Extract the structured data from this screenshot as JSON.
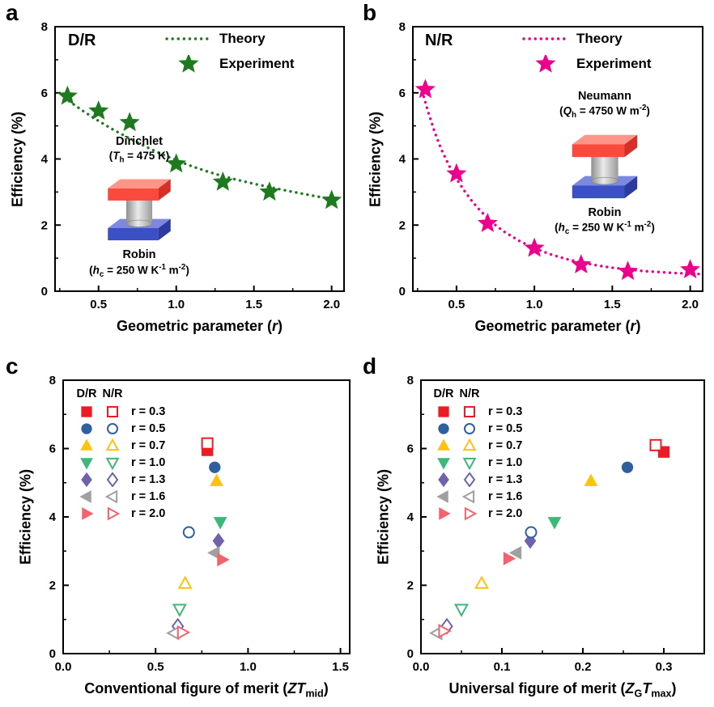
{
  "chart_data": [
    {
      "panel_letter": "a",
      "type": "line",
      "title": "D/R",
      "ylabel": "Efficiency (%)",
      "xlabel_segments": [
        {
          "t": "Geometric parameter ("
        },
        {
          "t": "r",
          "i": true
        },
        {
          "t": ")"
        }
      ],
      "xlim": [
        0.22,
        2.08
      ],
      "ylim": [
        0,
        8
      ],
      "xticks": {
        "values": [
          0.5,
          1.0,
          1.5,
          2.0
        ],
        "labels": [
          "0.5",
          "1.0",
          "1.5",
          "2.0"
        ]
      },
      "yticks": {
        "values": [
          0,
          2,
          4,
          6,
          8
        ],
        "labels": [
          "0",
          "2",
          "4",
          "6",
          "8"
        ]
      },
      "legend": {
        "position": "top-center",
        "entries": [
          {
            "kind": "dotted-line",
            "label": "Theory",
            "color": "#1f7a1f"
          },
          {
            "kind": "star",
            "label": "Experiment",
            "color": "#1f7a1f"
          }
        ]
      },
      "series": [
        {
          "name": "Theory",
          "kind": "dotted-line",
          "color": "#1f7a1f",
          "x": [
            0.28,
            0.4,
            0.5,
            0.6,
            0.7,
            0.8,
            0.9,
            1.0,
            1.1,
            1.2,
            1.3,
            1.4,
            1.5,
            1.6,
            1.7,
            1.8,
            1.9,
            2.0,
            2.06
          ],
          "y": [
            5.85,
            5.45,
            5.15,
            4.87,
            4.62,
            4.38,
            4.16,
            3.96,
            3.78,
            3.62,
            3.48,
            3.36,
            3.25,
            3.15,
            3.05,
            2.96,
            2.87,
            2.79,
            2.74
          ]
        },
        {
          "name": "Experiment",
          "kind": "scatter",
          "marker": "star",
          "filled": true,
          "color": "#1f7a1f",
          "size": 10,
          "x": [
            0.3,
            0.5,
            0.7,
            1.0,
            1.3,
            1.6,
            2.0
          ],
          "y": [
            5.9,
            5.45,
            5.1,
            3.85,
            3.3,
            3.0,
            2.75
          ]
        }
      ],
      "inset": {
        "top_title": "Dirichlet",
        "top_value_segments": [
          {
            "t": "("
          },
          {
            "t": "T",
            "i": true
          },
          {
            "t": "h",
            "sub": true
          },
          {
            "t": " = 475 K)"
          }
        ],
        "bottom_title": "Robin",
        "bottom_value_segments": [
          {
            "t": "("
          },
          {
            "t": "h",
            "i": true
          },
          {
            "t": "c",
            "sub": true
          },
          {
            "t": " = 250 W K"
          },
          {
            "t": "-1",
            "sup": true
          },
          {
            "t": " m"
          },
          {
            "t": "-2",
            "sup": true
          },
          {
            "t": ")"
          }
        ]
      }
    },
    {
      "panel_letter": "b",
      "type": "line",
      "title": "N/R",
      "ylabel": "Efficiency (%)",
      "xlabel_segments": [
        {
          "t": "Geometric parameter ("
        },
        {
          "t": "r",
          "i": true
        },
        {
          "t": ")"
        }
      ],
      "xlim": [
        0.22,
        2.08
      ],
      "ylim": [
        0,
        8
      ],
      "xticks": {
        "values": [
          0.5,
          1.0,
          1.5,
          2.0
        ],
        "labels": [
          "0.5",
          "1.0",
          "1.5",
          "2.0"
        ]
      },
      "yticks": {
        "values": [
          0,
          2,
          4,
          6,
          8
        ],
        "labels": [
          "0",
          "2",
          "4",
          "6",
          "8"
        ]
      },
      "legend": {
        "position": "top-center",
        "entries": [
          {
            "kind": "dotted-line",
            "label": "Theory",
            "color": "#ec008c"
          },
          {
            "kind": "star",
            "label": "Experiment",
            "color": "#ec008c"
          }
        ]
      },
      "series": [
        {
          "name": "Theory",
          "kind": "dotted-line",
          "color": "#ec008c",
          "x": [
            0.28,
            0.32,
            0.36,
            0.4,
            0.45,
            0.5,
            0.55,
            0.6,
            0.65,
            0.7,
            0.75,
            0.8,
            0.9,
            1.0,
            1.1,
            1.2,
            1.3,
            1.4,
            1.5,
            1.6,
            1.7,
            1.8,
            1.9,
            2.0,
            2.06
          ],
          "y": [
            6.05,
            5.4,
            4.82,
            4.32,
            3.82,
            3.4,
            3.04,
            2.72,
            2.45,
            2.21,
            2.0,
            1.82,
            1.53,
            1.3,
            1.12,
            0.98,
            0.87,
            0.78,
            0.71,
            0.66,
            0.61,
            0.58,
            0.55,
            0.53,
            0.52
          ]
        },
        {
          "name": "Experiment",
          "kind": "scatter",
          "marker": "star",
          "filled": true,
          "color": "#ec008c",
          "size": 10,
          "x": [
            0.3,
            0.5,
            0.7,
            1.0,
            1.3,
            1.6,
            2.0
          ],
          "y": [
            6.1,
            3.55,
            2.05,
            1.3,
            0.8,
            0.6,
            0.65
          ]
        }
      ],
      "inset": {
        "top_title": "Neumann",
        "top_value_segments": [
          {
            "t": "("
          },
          {
            "t": "Q",
            "i": true
          },
          {
            "t": "h",
            "sub": true
          },
          {
            "t": " = 4750 W m"
          },
          {
            "t": "-2",
            "sup": true
          },
          {
            "t": ")"
          }
        ],
        "bottom_title": "Robin",
        "bottom_value_segments": [
          {
            "t": "("
          },
          {
            "t": "h",
            "i": true
          },
          {
            "t": "c",
            "sub": true
          },
          {
            "t": " = 250 W K"
          },
          {
            "t": "-1",
            "sup": true
          },
          {
            "t": " m"
          },
          {
            "t": "-2",
            "sup": true
          },
          {
            "t": ")"
          }
        ]
      }
    },
    {
      "panel_letter": "c",
      "type": "scatter",
      "ylabel": "Efficiency (%)",
      "xlabel_segments": [
        {
          "t": "Conventional figure of merit ("
        },
        {
          "t": "ZT",
          "i": true
        },
        {
          "t": "mid",
          "sub": true
        },
        {
          "t": ")"
        }
      ],
      "xlim": [
        0,
        1.55
      ],
      "ylim": [
        0,
        8
      ],
      "xticks": {
        "values": [
          0.0,
          0.5,
          1.0,
          1.5
        ],
        "labels": [
          "0.0",
          "0.5",
          "1.0",
          "1.5"
        ]
      },
      "yticks": {
        "values": [
          0,
          2,
          4,
          6,
          8
        ],
        "labels": [
          "0",
          "2",
          "4",
          "6",
          "8"
        ]
      },
      "legend": {
        "position": "top-left",
        "headers": [
          "D/R",
          "N/R"
        ],
        "rows": [
          {
            "shape": "square",
            "color": "#ed1c24",
            "label": "r = 0.3"
          },
          {
            "shape": "circle",
            "color": "#2f5f9f",
            "label": "r = 0.5"
          },
          {
            "shape": "tri-up",
            "color": "#ffc20e",
            "label": "r = 0.7"
          },
          {
            "shape": "tri-down",
            "color": "#3cb878",
            "label": "r = 1.0"
          },
          {
            "shape": "diamond",
            "color": "#6f63ae",
            "label": "r = 1.3"
          },
          {
            "shape": "tri-left",
            "color": "#a0a0a0",
            "label": "r = 1.6"
          },
          {
            "shape": "tri-right",
            "color": "#f4626e",
            "label": "r = 2.0"
          }
        ]
      },
      "series": [
        {
          "name": "D/R",
          "kind": "scatter-multi",
          "filled": true,
          "size": 6.5,
          "points": [
            {
              "shape": "square",
              "color": "#ed1c24",
              "r": "0.3",
              "x": 0.78,
              "y": 5.95
            },
            {
              "shape": "circle",
              "color": "#2f5f9f",
              "r": "0.5",
              "x": 0.82,
              "y": 5.45
            },
            {
              "shape": "tri-up",
              "color": "#ffc20e",
              "r": "0.7",
              "x": 0.83,
              "y": 5.05
            },
            {
              "shape": "tri-down",
              "color": "#3cb878",
              "r": "1.0",
              "x": 0.85,
              "y": 3.85
            },
            {
              "shape": "diamond",
              "color": "#6f63ae",
              "r": "1.3",
              "x": 0.84,
              "y": 3.3
            },
            {
              "shape": "tri-left",
              "color": "#a0a0a0",
              "r": "1.6",
              "x": 0.82,
              "y": 2.95
            },
            {
              "shape": "tri-right",
              "color": "#f4626e",
              "r": "2.0",
              "x": 0.86,
              "y": 2.75
            }
          ]
        },
        {
          "name": "N/R",
          "kind": "scatter-multi",
          "filled": false,
          "size": 6.5,
          "points": [
            {
              "shape": "square",
              "color": "#ed1c24",
              "r": "0.3",
              "x": 0.78,
              "y": 6.15
            },
            {
              "shape": "circle",
              "color": "#2f5f9f",
              "r": "0.5",
              "x": 0.68,
              "y": 3.55
            },
            {
              "shape": "tri-up",
              "color": "#ffc20e",
              "r": "0.7",
              "x": 0.66,
              "y": 2.05
            },
            {
              "shape": "tri-down",
              "color": "#3cb878",
              "r": "1.0",
              "x": 0.63,
              "y": 1.3
            },
            {
              "shape": "diamond",
              "color": "#6f63ae",
              "r": "1.3",
              "x": 0.62,
              "y": 0.8
            },
            {
              "shape": "tri-left",
              "color": "#a0a0a0",
              "r": "1.6",
              "x": 0.6,
              "y": 0.6
            },
            {
              "shape": "tri-right",
              "color": "#f4626e",
              "r": "2.0",
              "x": 0.645,
              "y": 0.62
            }
          ]
        }
      ]
    },
    {
      "panel_letter": "d",
      "type": "scatter",
      "ylabel": "Efficiency (%)",
      "xlabel_segments": [
        {
          "t": "Universal figure of merit ("
        },
        {
          "t": "Z",
          "i": true
        },
        {
          "t": "G",
          "sub": true
        },
        {
          "t": "T",
          "i": true
        },
        {
          "t": "max",
          "sub": true
        },
        {
          "t": ")"
        }
      ],
      "xlim": [
        0,
        0.35
      ],
      "ylim": [
        0,
        8
      ],
      "xticks": {
        "values": [
          0.0,
          0.1,
          0.2,
          0.3
        ],
        "labels": [
          "0.0",
          "0.1",
          "0.2",
          "0.3"
        ]
      },
      "yticks": {
        "values": [
          0,
          2,
          4,
          6,
          8
        ],
        "labels": [
          "0",
          "2",
          "4",
          "6",
          "8"
        ]
      },
      "legend": {
        "position": "top-left",
        "headers": [
          "D/R",
          "N/R"
        ],
        "rows": [
          {
            "shape": "square",
            "color": "#ed1c24",
            "label": "r = 0.3"
          },
          {
            "shape": "circle",
            "color": "#2f5f9f",
            "label": "r = 0.5"
          },
          {
            "shape": "tri-up",
            "color": "#ffc20e",
            "label": "r = 0.7"
          },
          {
            "shape": "tri-down",
            "color": "#3cb878",
            "label": "r = 1.0"
          },
          {
            "shape": "diamond",
            "color": "#6f63ae",
            "label": "r = 1.3"
          },
          {
            "shape": "tri-left",
            "color": "#a0a0a0",
            "label": "r = 1.6"
          },
          {
            "shape": "tri-right",
            "color": "#f4626e",
            "label": "r = 2.0"
          }
        ]
      },
      "series": [
        {
          "name": "D/R",
          "kind": "scatter-multi",
          "filled": true,
          "size": 6.5,
          "points": [
            {
              "shape": "square",
              "color": "#ed1c24",
              "r": "0.3",
              "x": 0.3,
              "y": 5.9
            },
            {
              "shape": "circle",
              "color": "#2f5f9f",
              "r": "0.5",
              "x": 0.255,
              "y": 5.45
            },
            {
              "shape": "tri-up",
              "color": "#ffc20e",
              "r": "0.7",
              "x": 0.21,
              "y": 5.05
            },
            {
              "shape": "tri-down",
              "color": "#3cb878",
              "r": "1.0",
              "x": 0.165,
              "y": 3.85
            },
            {
              "shape": "diamond",
              "color": "#6f63ae",
              "r": "1.3",
              "x": 0.135,
              "y": 3.3
            },
            {
              "shape": "tri-left",
              "color": "#a0a0a0",
              "r": "1.6",
              "x": 0.118,
              "y": 2.95
            },
            {
              "shape": "tri-right",
              "color": "#f4626e",
              "r": "2.0",
              "x": 0.108,
              "y": 2.78
            }
          ]
        },
        {
          "name": "N/R",
          "kind": "scatter-multi",
          "filled": false,
          "size": 6.5,
          "points": [
            {
              "shape": "square",
              "color": "#ed1c24",
              "r": "0.3",
              "x": 0.29,
              "y": 6.1
            },
            {
              "shape": "circle",
              "color": "#2f5f9f",
              "r": "0.5",
              "x": 0.136,
              "y": 3.55
            },
            {
              "shape": "tri-up",
              "color": "#ffc20e",
              "r": "0.7",
              "x": 0.075,
              "y": 2.05
            },
            {
              "shape": "tri-down",
              "color": "#3cb878",
              "r": "1.0",
              "x": 0.05,
              "y": 1.3
            },
            {
              "shape": "diamond",
              "color": "#6f63ae",
              "r": "1.3",
              "x": 0.032,
              "y": 0.8
            },
            {
              "shape": "tri-left",
              "color": "#a0a0a0",
              "r": "1.6",
              "x": 0.02,
              "y": 0.6
            },
            {
              "shape": "tri-right",
              "color": "#f4626e",
              "r": "2.0",
              "x": 0.028,
              "y": 0.66
            }
          ]
        }
      ]
    }
  ]
}
